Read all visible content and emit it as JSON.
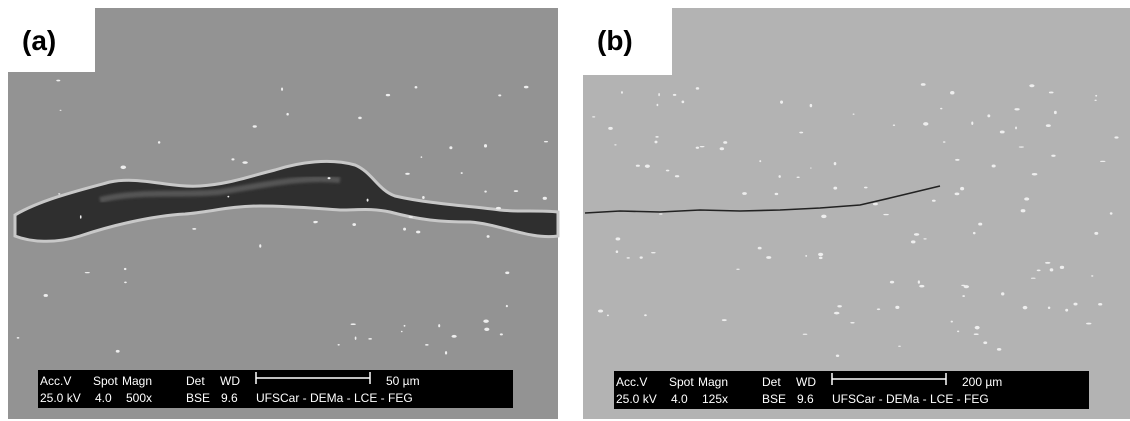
{
  "panels": [
    {
      "label": "(a)",
      "header": [
        "Acc.V",
        "Spot",
        "Magn",
        "Det",
        "WD"
      ],
      "values": [
        "25.0 kV",
        "4.0",
        "500x",
        "BSE",
        "9.6"
      ],
      "lab": "UFSCar - DEMa - LCE - FEG",
      "scale": "50 µm"
    },
    {
      "label": "(b)",
      "header": [
        "Acc.V",
        "Spot",
        "Magn",
        "Det",
        "WD"
      ],
      "values": [
        "25.0 kV",
        "4.0",
        "125x",
        "BSE",
        "9.6"
      ],
      "lab": "UFSCar - DEMa - LCE - FEG",
      "scale": "200 µm"
    }
  ]
}
